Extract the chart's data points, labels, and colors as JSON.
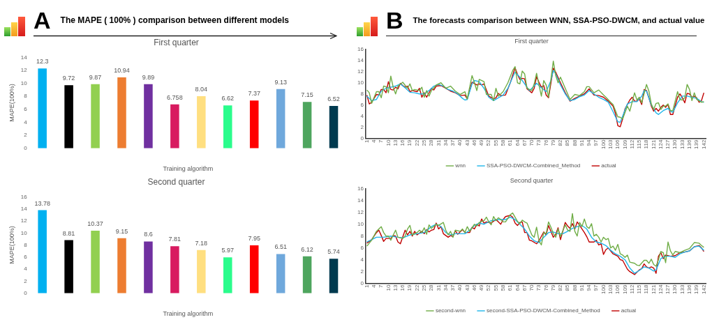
{
  "chart_data": [
    {
      "type": "bar",
      "title": "First quarter",
      "xlabel": "Training algorithm",
      "ylabel": "MAPE(100%)",
      "annotations": [
        "A",
        "The MAPE ( 100% ) comparison between different models"
      ],
      "categories": [
        null,
        null,
        null,
        null,
        null,
        null,
        null,
        null,
        null,
        null,
        null,
        null
      ],
      "values": [
        12.3,
        9.72,
        9.87,
        10.94,
        9.89,
        6.758,
        8.04,
        6.62,
        7.37,
        9.13,
        7.15,
        6.52
      ],
      "colors": [
        "#00b0f0",
        "#000000",
        "#92d050",
        "#ed7d31",
        "#7030a0",
        "#d81b60",
        "#ffdf80",
        "#2afc8c",
        "#ff0000",
        "#6fa8dc",
        "#4ea55e",
        "#003a4f"
      ],
      "ylim": [
        0,
        14
      ],
      "yticks": [
        0,
        2,
        4,
        6,
        8,
        10,
        12,
        14
      ],
      "grid": false,
      "legend": false,
      "data_labels": true
    },
    {
      "type": "bar",
      "title": "Second quarter",
      "xlabel": "Training algorithm",
      "ylabel": "MAPE(100%)",
      "categories": [
        null,
        null,
        null,
        null,
        null,
        null,
        null,
        null,
        null,
        null,
        null,
        null
      ],
      "values": [
        13.78,
        8.81,
        10.37,
        9.15,
        8.6,
        7.81,
        7.18,
        5.97,
        7.95,
        6.51,
        6.12,
        5.74
      ],
      "colors": [
        "#00b0f0",
        "#000000",
        "#92d050",
        "#ed7d31",
        "#7030a0",
        "#d81b60",
        "#ffdf80",
        "#2afc8c",
        "#ff0000",
        "#6fa8dc",
        "#4ea55e",
        "#003a4f"
      ],
      "ylim": [
        0,
        16
      ],
      "yticks": [
        0,
        2,
        4,
        6,
        8,
        10,
        12,
        14,
        16
      ],
      "grid": false,
      "legend": false,
      "data_labels": true
    },
    {
      "type": "line",
      "title": "First quarter",
      "annotations": [
        "B",
        "The forecasts comparison between WNN, SSA-PSO-DWCM, and actual value"
      ],
      "xlim": [
        0.5,
        143
      ],
      "xticks": [
        1,
        4,
        7,
        10,
        13,
        16,
        19,
        22,
        25,
        28,
        31,
        34,
        37,
        40,
        43,
        46,
        49,
        52,
        55,
        58,
        61,
        64,
        67,
        70,
        73,
        76,
        79,
        82,
        85,
        88,
        91,
        94,
        97,
        100,
        103,
        106,
        109,
        112,
        115,
        118,
        121,
        124,
        127,
        130,
        133,
        136,
        139,
        142
      ],
      "ylim": [
        0,
        16
      ],
      "yticks": [
        0,
        2,
        4,
        6,
        8,
        10,
        12,
        14,
        16
      ],
      "grid": false,
      "legend": "bottom",
      "marker": "none",
      "line_style": "solid",
      "series": [
        {
          "name": "wnn",
          "color": "#70ad47",
          "x": [
            1,
            2,
            3,
            5,
            6,
            7,
            8,
            9,
            10,
            11,
            12,
            13,
            14,
            16,
            18,
            19,
            20,
            21,
            23,
            24,
            25,
            26,
            27,
            28,
            30,
            32,
            34,
            36,
            38,
            40,
            42,
            43,
            45,
            46,
            47,
            48,
            50,
            51,
            53,
            54,
            55,
            56,
            58,
            60,
            62,
            63,
            64,
            65,
            66,
            67,
            68,
            70,
            71,
            72,
            73,
            74,
            75,
            76,
            77,
            79,
            80,
            81,
            82,
            84,
            86,
            88,
            90,
            92,
            93,
            94,
            96,
            98,
            100,
            101,
            103,
            104,
            106,
            107,
            108,
            110,
            111,
            113,
            114,
            115,
            116,
            118,
            119,
            120,
            121,
            122,
            123,
            124,
            125,
            126,
            127,
            128,
            129,
            131,
            132,
            133,
            134,
            135,
            136,
            137,
            138,
            139,
            141,
            142
          ],
          "values": [
            8.7,
            8.2,
            6.3,
            8.4,
            8.4,
            7.3,
            9.4,
            9.3,
            8.2,
            11.2,
            9.2,
            8.0,
            9.4,
            10.1,
            9.0,
            9.8,
            8.6,
            8.8,
            8.6,
            9.2,
            7.4,
            8.6,
            7.6,
            8.6,
            9.6,
            10.0,
            9.0,
            9.4,
            8.5,
            7.9,
            8.4,
            7.1,
            11.3,
            10.0,
            8.6,
            10.6,
            10.2,
            7.9,
            7.9,
            6.8,
            9.0,
            7.6,
            8.4,
            10.0,
            12.2,
            12.9,
            10.0,
            9.8,
            12.1,
            11.6,
            9.0,
            8.6,
            9.8,
            11.7,
            9.6,
            7.6,
            10.4,
            9.6,
            7.4,
            13.9,
            11.3,
            10.0,
            11.0,
            9.0,
            7.0,
            7.9,
            7.7,
            8.4,
            9.3,
            9.3,
            8.2,
            8.7,
            7.8,
            7.4,
            6.5,
            6.1,
            3.9,
            3.8,
            3.5,
            5.8,
            4.9,
            8.2,
            6.9,
            7.4,
            6.4,
            9.7,
            8.5,
            6.2,
            5.2,
            6.3,
            6.4,
            5.2,
            5.8,
            5.8,
            6.2,
            5.0,
            5.0,
            8.4,
            7.0,
            6.9,
            7.3,
            9.7,
            8.8,
            6.8,
            8.2,
            7.0,
            6.5,
            6.6
          ]
        },
        {
          "name": "SSA-PSO-DWCM-Combined_Method",
          "color": "#1fb6ea",
          "x": [
            1,
            3,
            5,
            7,
            9,
            11,
            13,
            15,
            17,
            19,
            21,
            23,
            25,
            27,
            29,
            31,
            33,
            35,
            37,
            39,
            41,
            42,
            43,
            45,
            46,
            48,
            50,
            52,
            54,
            56,
            58,
            60,
            62,
            63,
            65,
            67,
            69,
            71,
            72,
            74,
            76,
            78,
            79,
            80,
            82,
            84,
            86,
            88,
            90,
            92,
            94,
            96,
            98,
            100,
            102,
            104,
            106,
            107,
            108,
            110,
            112,
            114,
            116,
            117,
            118,
            120,
            122,
            123,
            125,
            127,
            128,
            129,
            131,
            133,
            135,
            137,
            139,
            141,
            142
          ],
          "values": [
            7.6,
            6.8,
            7.0,
            8.5,
            9.0,
            9.2,
            9.4,
            9.8,
            9.1,
            8.3,
            8.2,
            8.0,
            8.0,
            8.6,
            9.4,
            9.7,
            9.4,
            8.8,
            8.5,
            8.0,
            7.2,
            6.9,
            7.0,
            9.8,
            10.4,
            10.2,
            9.0,
            7.4,
            6.8,
            7.3,
            7.8,
            9.0,
            11.0,
            11.9,
            11.0,
            9.8,
            8.6,
            9.4,
            9.9,
            9.1,
            8.4,
            10.4,
            12.2,
            11.6,
            9.6,
            8.0,
            6.8,
            7.0,
            7.5,
            7.8,
            8.6,
            8.0,
            7.4,
            7.0,
            6.5,
            4.8,
            3.0,
            2.9,
            4.0,
            6.2,
            6.6,
            6.6,
            7.6,
            8.6,
            8.5,
            6.0,
            4.6,
            4.3,
            5.0,
            5.4,
            4.9,
            4.7,
            6.4,
            7.6,
            7.6,
            7.4,
            7.2,
            6.6,
            6.5
          ]
        },
        {
          "name": "actual",
          "color": "#c00000",
          "x": [
            1,
            2,
            3,
            4,
            5,
            6,
            7,
            8,
            9,
            10,
            11,
            12,
            13,
            14,
            15,
            16,
            17,
            18,
            19,
            20,
            22,
            23,
            24,
            25,
            26,
            28,
            29,
            30,
            32,
            34,
            36,
            38,
            40,
            42,
            43,
            45,
            47,
            48,
            49,
            50,
            52,
            54,
            55,
            56,
            57,
            59,
            61,
            63,
            64,
            65,
            66,
            67,
            68,
            70,
            71,
            72,
            73,
            74,
            75,
            76,
            77,
            79,
            80,
            82,
            84,
            86,
            88,
            90,
            92,
            94,
            96,
            98,
            100,
            102,
            104,
            105,
            106,
            107,
            108,
            109,
            111,
            112,
            113,
            114,
            115,
            116,
            117,
            118,
            119,
            120,
            121,
            122,
            123,
            124,
            125,
            126,
            127,
            128,
            129,
            130,
            131,
            132,
            133,
            134,
            135,
            136,
            137,
            138,
            139,
            140,
            141,
            142
          ],
          "values": [
            7.8,
            6.2,
            6.5,
            7.2,
            7.9,
            7.8,
            8.8,
            8.8,
            8.2,
            10.2,
            8.8,
            8.7,
            9.2,
            8.9,
            9.9,
            9.5,
            9.2,
            9.4,
            8.4,
            8.6,
            8.4,
            9.0,
            7.4,
            8.2,
            7.4,
            9.0,
            8.7,
            9.4,
            9.5,
            9.0,
            8.5,
            8.2,
            7.7,
            7.8,
            7.1,
            10.1,
            9.6,
            9.8,
            9.6,
            9.8,
            7.6,
            7.1,
            7.3,
            8.1,
            7.7,
            7.8,
            10.0,
            12.7,
            11.5,
            10.6,
            10.8,
            10.7,
            8.9,
            8.2,
            9.0,
            11.1,
            10.1,
            9.2,
            9.5,
            7.8,
            7.3,
            12.6,
            11.9,
            10.0,
            8.2,
            6.7,
            7.2,
            7.6,
            8.0,
            8.9,
            7.8,
            7.7,
            7.4,
            6.7,
            5.8,
            4.5,
            2.3,
            2.1,
            3.5,
            5.3,
            6.9,
            7.4,
            6.7,
            6.7,
            7.1,
            6.1,
            8.8,
            8.6,
            7.3,
            5.8,
            4.9,
            5.4,
            4.9,
            5.6,
            6.0,
            5.6,
            6.1,
            4.3,
            4.3,
            5.9,
            7.4,
            8.0,
            7.3,
            6.4,
            8.1,
            8.0,
            7.4,
            7.6,
            7.3,
            6.5,
            6.8,
            8.2
          ]
        }
      ]
    },
    {
      "type": "line",
      "title": "Second quarter",
      "xlim": [
        0.5,
        143
      ],
      "xticks": [
        1,
        4,
        7,
        10,
        13,
        16,
        19,
        22,
        25,
        28,
        31,
        34,
        37,
        40,
        43,
        46,
        49,
        52,
        55,
        58,
        61,
        64,
        67,
        70,
        73,
        76,
        79,
        82,
        85,
        88,
        91,
        94,
        97,
        100,
        103,
        106,
        109,
        112,
        115,
        118,
        121,
        124,
        127,
        130,
        133,
        136,
        139,
        142
      ],
      "ylim": [
        0,
        16
      ],
      "yticks": [
        0,
        2,
        4,
        6,
        8,
        10,
        12,
        14,
        16
      ],
      "grid": false,
      "legend": "bottom",
      "marker": "none",
      "line_style": "solid",
      "series": [
        {
          "name": "second-wnn",
          "color": "#70ad47",
          "x": [
            1,
            3,
            5,
            6,
            7,
            8,
            9,
            10,
            11,
            13,
            14,
            16,
            17,
            18,
            19,
            20,
            22,
            23,
            24,
            25,
            26,
            27,
            28,
            30,
            31,
            33,
            34,
            35,
            36,
            37,
            38,
            40,
            41,
            42,
            43,
            44,
            46,
            47,
            48,
            50,
            51,
            52,
            53,
            54,
            55,
            56,
            57,
            58,
            59,
            61,
            62,
            63,
            64,
            65,
            66,
            67,
            68,
            70,
            71,
            72,
            73,
            74,
            75,
            76,
            77,
            78,
            79,
            80,
            81,
            82,
            84,
            85,
            86,
            87,
            88,
            89,
            90,
            91,
            92,
            93,
            94,
            95,
            96,
            97,
            98,
            99,
            100,
            101,
            102,
            103,
            104,
            105,
            106,
            107,
            108,
            109,
            110,
            111,
            113,
            114,
            115,
            117,
            118,
            119,
            120,
            121,
            122,
            123,
            124,
            125,
            126,
            127,
            128,
            129,
            130,
            132,
            134,
            136,
            138,
            140,
            141,
            142
          ],
          "values": [
            6.3,
            7.3,
            8.8,
            9.2,
            9.6,
            8.6,
            8.0,
            8.0,
            7.3,
            9.0,
            7.8,
            7.6,
            8.0,
            9.2,
            9.8,
            8.2,
            8.6,
            9.0,
            8.6,
            9.4,
            8.3,
            9.9,
            9.3,
            10.0,
            9.8,
            10.3,
            9.0,
            8.2,
            8.8,
            7.8,
            9.0,
            8.8,
            9.2,
            8.6,
            9.6,
            8.8,
            10.0,
            9.7,
            10.3,
            10.6,
            11.2,
            10.4,
            9.9,
            11.3,
            10.6,
            11.1,
            10.8,
            10.4,
            10.4,
            11.6,
            11.9,
            11.2,
            10.5,
            10.1,
            10.7,
            10.4,
            10.2,
            8.2,
            7.8,
            9.5,
            7.2,
            6.5,
            8.6,
            8.4,
            10.4,
            9.5,
            8.4,
            7.8,
            9.2,
            7.9,
            9.9,
            9.0,
            8.8,
            11.8,
            8.8,
            8.0,
            10.3,
            9.6,
            10.9,
            9.6,
            9.3,
            10.1,
            8.0,
            8.3,
            7.8,
            7.0,
            7.8,
            7.4,
            7.6,
            6.0,
            6.3,
            5.6,
            6.6,
            5.0,
            4.8,
            4.4,
            4.8,
            3.6,
            3.4,
            3.1,
            3.0,
            3.9,
            3.9,
            3.4,
            4.1,
            3.2,
            2.9,
            4.0,
            5.4,
            5.2,
            3.5,
            7.0,
            5.5,
            4.8,
            5.4,
            5.2,
            5.6,
            5.9,
            6.9,
            6.8,
            6.4,
            6.1
          ]
        },
        {
          "name": "second-SSA-PSO-DWCM-Combined_Method",
          "color": "#1fb6ea",
          "x": [
            1,
            3,
            5,
            8,
            11,
            14,
            16,
            19,
            22,
            25,
            28,
            30,
            32,
            34,
            36,
            38,
            40,
            42,
            44,
            46,
            48,
            50,
            53,
            56,
            59,
            61,
            63,
            65,
            67,
            69,
            71,
            73,
            75,
            77,
            79,
            81,
            83,
            85,
            87,
            89,
            91,
            93,
            95,
            97,
            99,
            101,
            103,
            105,
            107,
            109,
            111,
            113,
            115,
            117,
            119,
            121,
            122,
            124,
            126,
            128,
            130,
            132,
            134,
            136,
            138,
            140,
            142
          ],
          "values": [
            7.0,
            7.4,
            7.8,
            7.8,
            8.0,
            7.8,
            7.7,
            8.2,
            8.4,
            8.6,
            9.6,
            10.0,
            9.6,
            8.6,
            8.2,
            8.4,
            8.4,
            8.4,
            9.0,
            9.8,
            10.2,
            10.0,
            10.6,
            10.8,
            10.8,
            11.2,
            10.8,
            10.0,
            9.2,
            8.0,
            7.2,
            6.9,
            7.8,
            8.6,
            8.7,
            8.4,
            8.4,
            8.8,
            9.3,
            9.6,
            9.8,
            9.2,
            7.8,
            7.0,
            6.8,
            6.4,
            5.6,
            5.0,
            4.6,
            4.0,
            2.6,
            1.7,
            2.2,
            2.8,
            2.6,
            2.1,
            2.3,
            4.2,
            4.6,
            4.6,
            4.4,
            5.0,
            5.3,
            5.5,
            6.2,
            6.3,
            5.6
          ]
        },
        {
          "name": "actual",
          "color": "#c00000",
          "x": [
            1,
            3,
            5,
            6,
            7,
            8,
            9,
            11,
            12,
            13,
            14,
            15,
            17,
            18,
            19,
            20,
            21,
            22,
            24,
            25,
            26,
            27,
            28,
            29,
            30,
            31,
            32,
            33,
            35,
            36,
            37,
            38,
            39,
            40,
            41,
            42,
            44,
            45,
            46,
            47,
            48,
            49,
            50,
            51,
            53,
            55,
            56,
            57,
            58,
            59,
            61,
            62,
            63,
            64,
            65,
            66,
            67,
            68,
            69,
            70,
            72,
            73,
            75,
            76,
            77,
            78,
            79,
            80,
            81,
            82,
            84,
            85,
            86,
            87,
            88,
            89,
            90,
            92,
            93,
            94,
            96,
            97,
            98,
            99,
            100,
            101,
            102,
            104,
            106,
            107,
            108,
            110,
            111,
            113,
            115,
            116,
            117,
            118,
            119,
            120,
            121,
            122,
            123,
            124,
            125,
            126,
            128,
            130,
            132,
            134,
            136,
            138,
            140,
            141,
            142
          ],
          "values": [
            6.8,
            7.4,
            8.6,
            9.0,
            8.1,
            7.1,
            7.6,
            7.6,
            8.1,
            8.0,
            7.0,
            6.7,
            9.0,
            8.2,
            8.8,
            8.0,
            8.8,
            8.2,
            8.8,
            8.4,
            9.1,
            8.7,
            9.0,
            9.1,
            10.2,
            9.2,
            9.6,
            8.4,
            7.8,
            8.1,
            7.9,
            8.9,
            8.3,
            8.7,
            9.1,
            8.6,
            8.6,
            9.5,
            9.2,
            10.0,
            9.7,
            10.9,
            10.2,
            10.4,
            10.2,
            10.8,
            10.4,
            10.0,
            10.8,
            11.3,
            11.5,
            11.2,
            10.2,
            9.8,
            10.3,
            10.4,
            8.6,
            8.6,
            7.3,
            7.2,
            6.7,
            7.2,
            8.7,
            8.2,
            9.8,
            8.8,
            7.8,
            8.3,
            9.4,
            7.4,
            10.3,
            9.7,
            9.3,
            10.1,
            9.2,
            10.4,
            9.8,
            8.6,
            7.9,
            7.0,
            7.0,
            7.3,
            6.5,
            6.7,
            4.9,
            5.7,
            6.0,
            5.0,
            4.6,
            4.0,
            3.9,
            2.4,
            2.0,
            1.5,
            2.3,
            2.5,
            3.3,
            2.8,
            2.6,
            2.8,
            2.6,
            1.7,
            4.6,
            5.2,
            4.2,
            4.8,
            4.6,
            4.7,
            5.2,
            5.3,
            5.5,
            6.2,
            6.4,
            6.0,
            5.4
          ]
        }
      ]
    }
  ]
}
